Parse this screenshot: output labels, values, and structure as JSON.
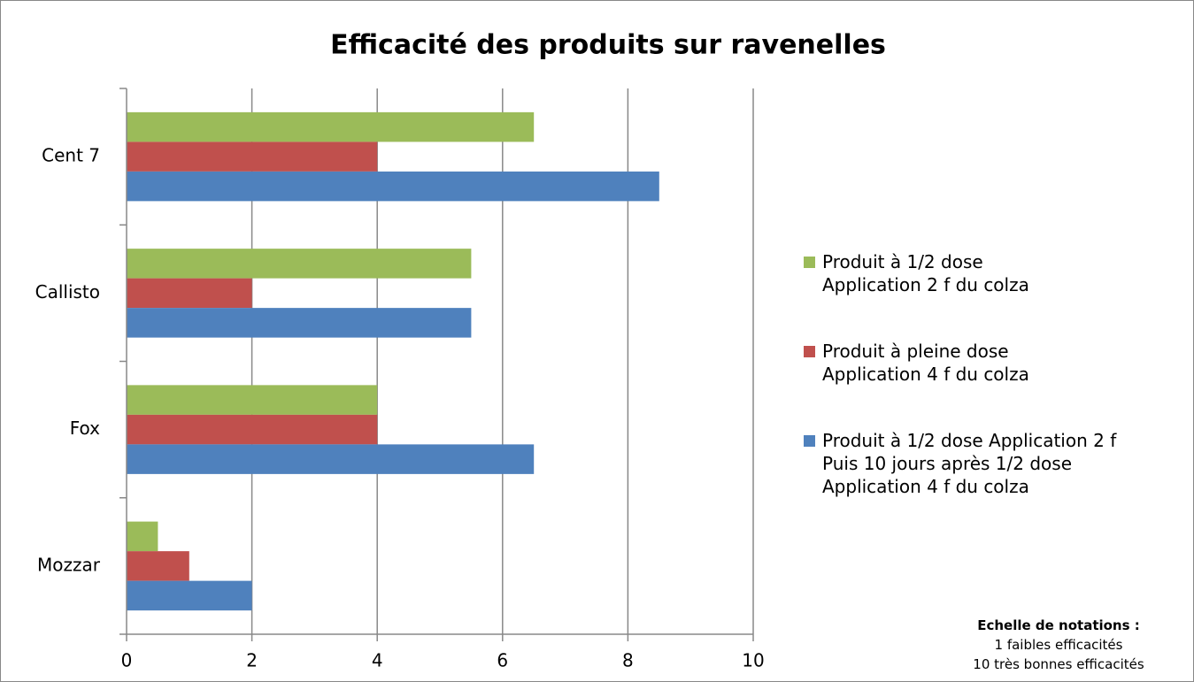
{
  "chart_data": {
    "type": "bar",
    "orientation": "horizontal",
    "title": "Efficacité des produits sur ravenelles",
    "categories": [
      "Cent 7",
      "Callisto",
      "Fox",
      "Mozzar"
    ],
    "series": [
      {
        "name": "Produit à 1/2 dose\nApplication 2 f du colza",
        "color": "#9bbb59",
        "values": [
          6.5,
          5.5,
          4,
          0.5
        ]
      },
      {
        "name": "Produit à pleine dose\nApplication 4 f du colza",
        "color": "#c0504d",
        "values": [
          4,
          2,
          4,
          1
        ]
      },
      {
        "name": "Produit à 1/2 dose Application 2 f\nPuis 10 jours après 1/2 dose\nApplication 4 f du colza",
        "color": "#4f81bd",
        "values": [
          8.5,
          5.5,
          6.5,
          2
        ]
      }
    ],
    "xlim": [
      0,
      10
    ],
    "xticks": [
      0,
      2,
      4,
      6,
      8,
      10
    ],
    "grid": true,
    "legend": "right",
    "annotation": {
      "title": "Echelle de notations :",
      "lines": [
        "1 faibles efficacités",
        "10 très bonnes efficacités"
      ]
    }
  }
}
